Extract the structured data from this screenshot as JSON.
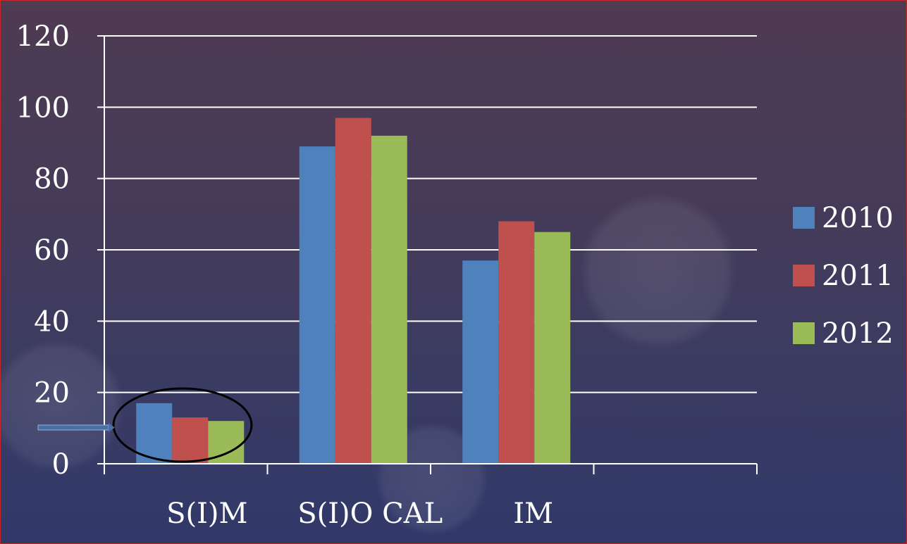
{
  "chart_data": {
    "type": "bar",
    "categories": [
      "S(I)M",
      "S(I)O CAL",
      "IM",
      ""
    ],
    "series": [
      {
        "name": "2010",
        "values": [
          17,
          89,
          57,
          null
        ],
        "color": "#4f81bd"
      },
      {
        "name": "2011",
        "values": [
          13,
          97,
          68,
          null
        ],
        "color": "#c0504d"
      },
      {
        "name": "2012",
        "values": [
          12,
          92,
          65,
          null
        ],
        "color": "#9bbb59"
      }
    ],
    "title": "",
    "xlabel": "",
    "ylabel": "",
    "ylim": [
      0,
      120
    ],
    "yticks": [
      "0",
      "20",
      "40",
      "60",
      "80",
      "100",
      "120"
    ],
    "grid": true,
    "legend_position": "right",
    "annotation": {
      "type": "ellipse-with-arrow",
      "target_category": "S(I)M",
      "color": "#000000"
    }
  }
}
